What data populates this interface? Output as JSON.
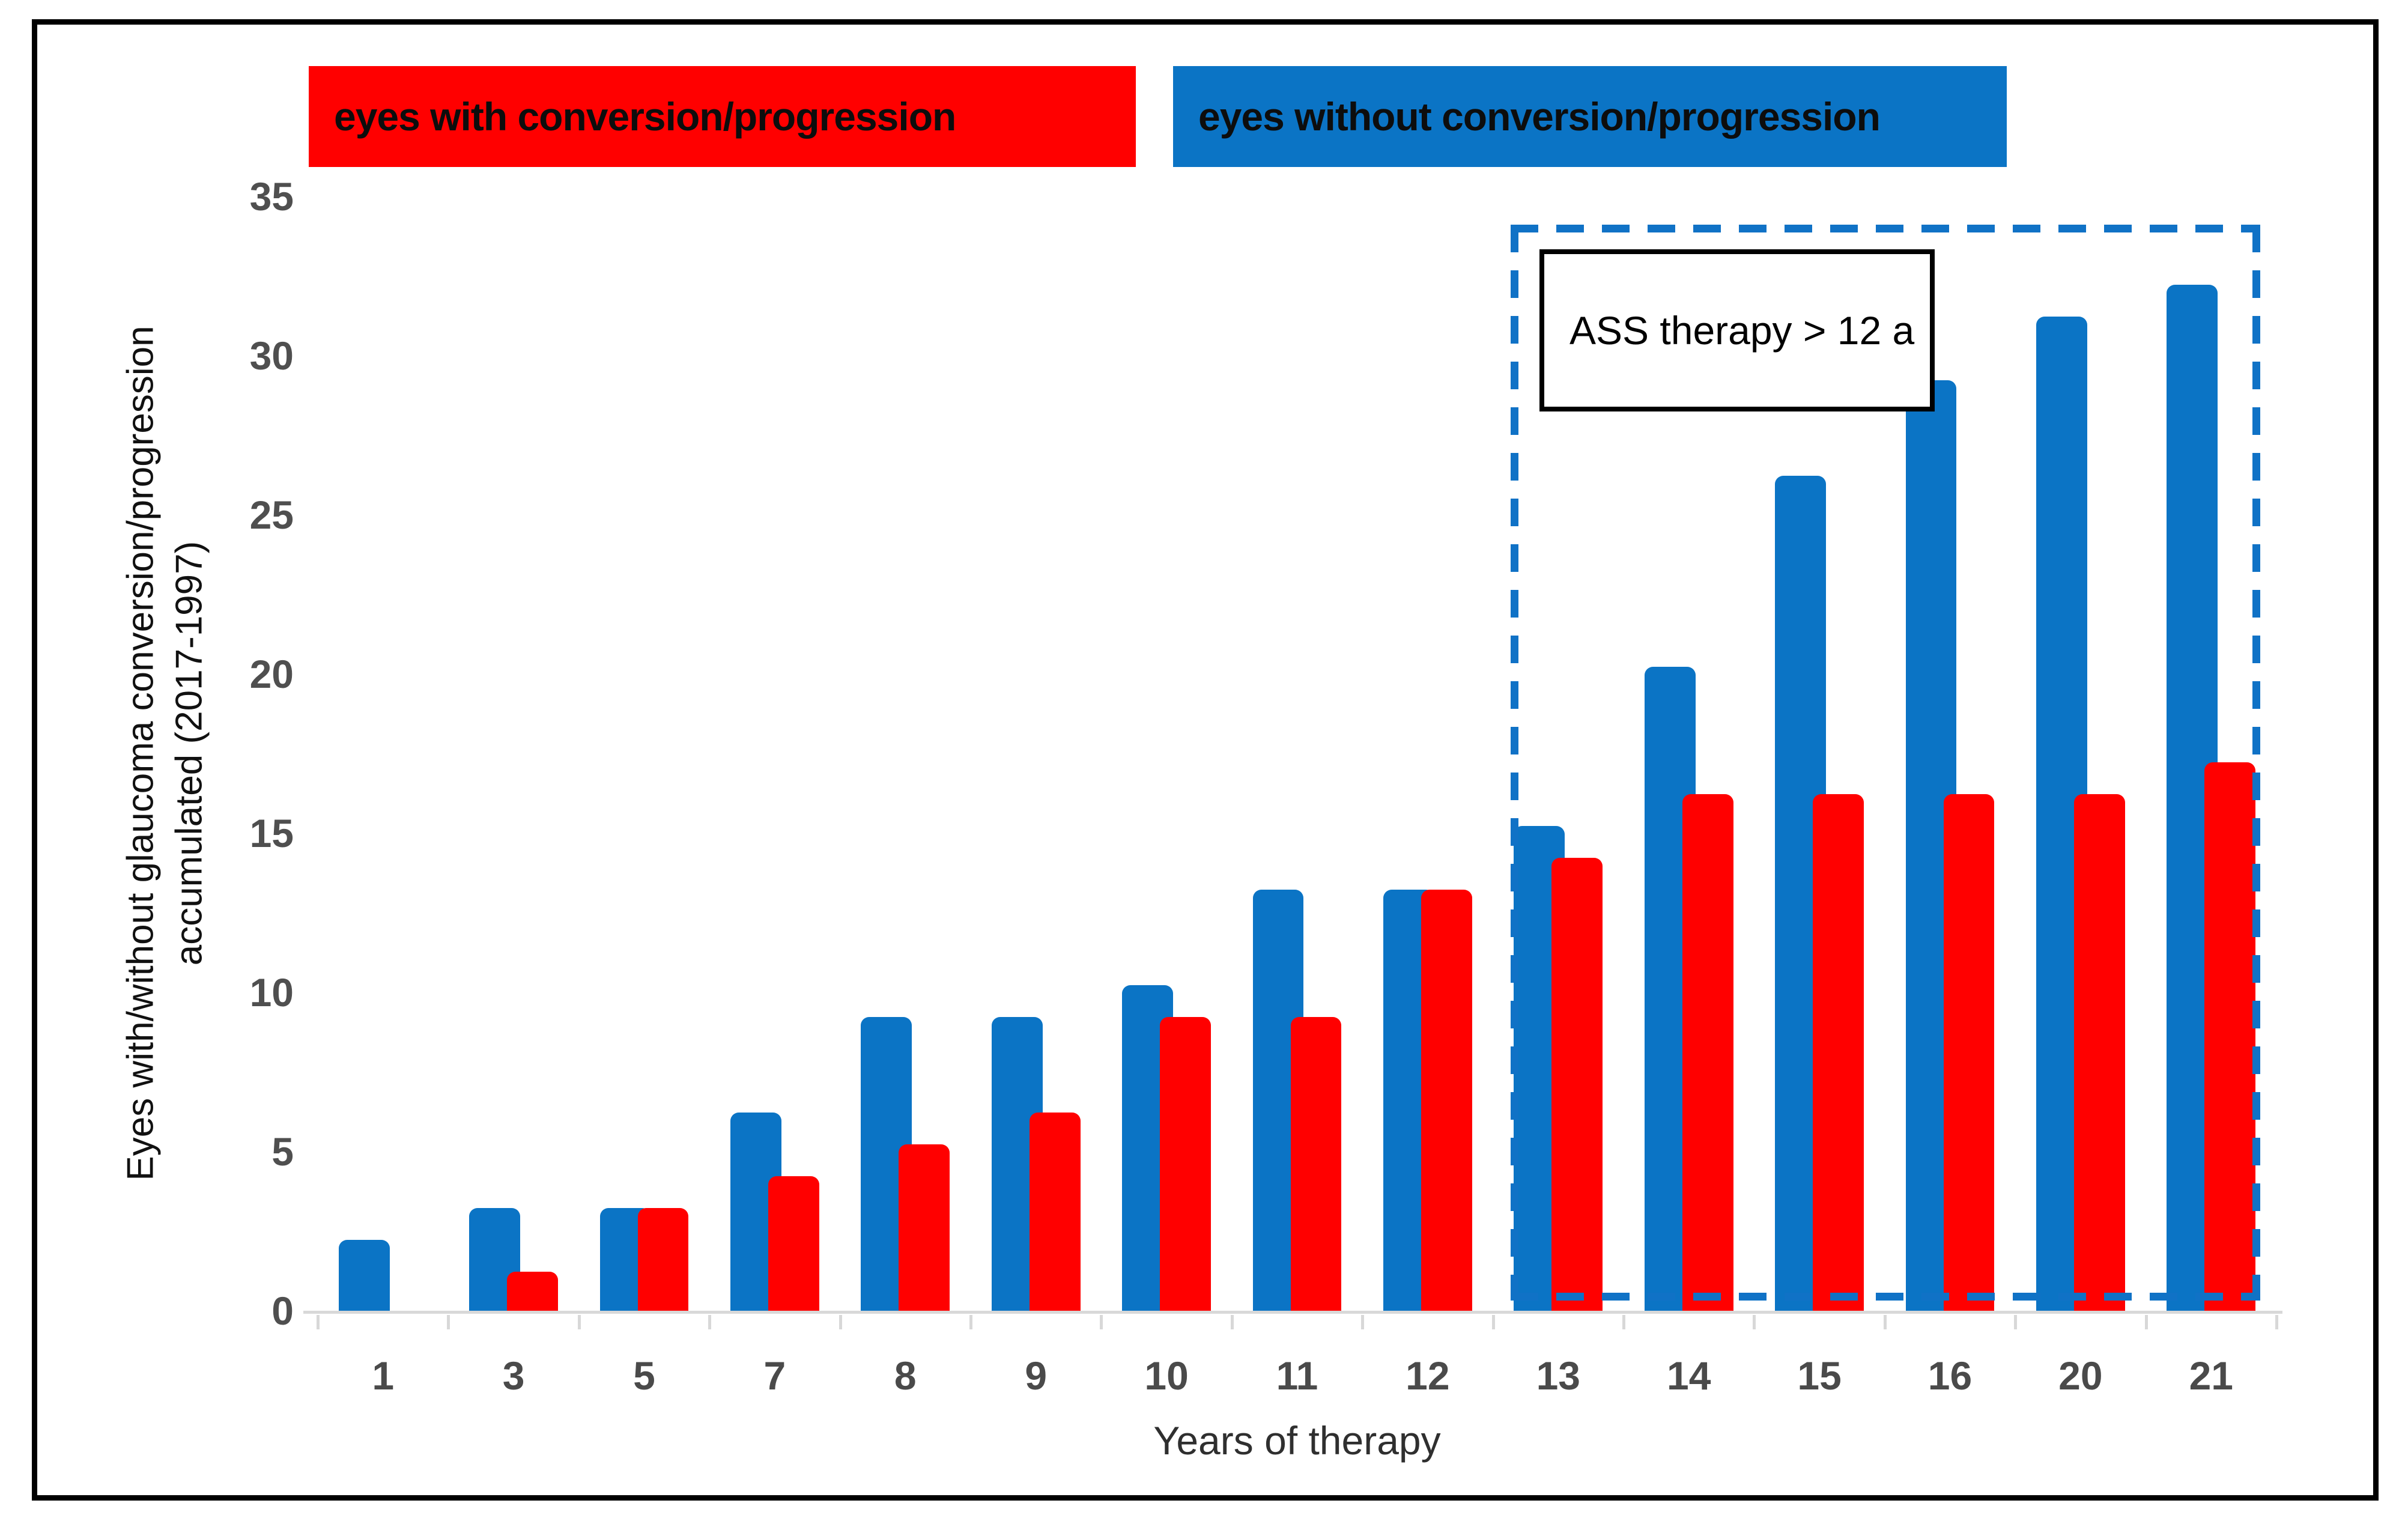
{
  "chart_data": {
    "type": "bar",
    "title": "",
    "categories": [
      "1",
      "3",
      "5",
      "7",
      "8",
      "9",
      "10",
      "11",
      "12",
      "13",
      "14",
      "15",
      "16",
      "20",
      "21"
    ],
    "series": [
      {
        "name": "eyes without conversion/progression",
        "color_key": "blue",
        "values": [
          2,
          3,
          3,
          6,
          9,
          9,
          10,
          13,
          13,
          15,
          20,
          26,
          29,
          31,
          32
        ]
      },
      {
        "name": "eyes with conversion/progression",
        "color_key": "red",
        "values": [
          0,
          1,
          3,
          4,
          5,
          6,
          9,
          9,
          13,
          14,
          16,
          16,
          16,
          16,
          17
        ]
      }
    ],
    "xlabel": "Years of therapy",
    "ylabel_line1": "Eyes with/without glaucoma conversion/progression",
    "ylabel_line2": "accumulated (2017-1997)",
    "y_ticks": [
      35,
      30,
      25,
      20,
      15,
      10,
      5,
      0
    ],
    "ylim": [
      0,
      35
    ],
    "grid": "off",
    "legend_position": "top",
    "annotation": {
      "label": "ASS therapy > 12 a",
      "region_categories": [
        "13",
        "14",
        "15",
        "16",
        "20",
        "21"
      ]
    }
  },
  "legend": {
    "with_normal": "eyes with conversion/",
    "with_bold": "progression",
    "without": "eyes without conversion/progression"
  },
  "annotation_label": "ASS therapy > 12 a",
  "colors": {
    "bar_blue": "#0B74C5",
    "bar_red": "#FF0000",
    "legend_red_bg": "#FF0000",
    "legend_blue_bg": "#0B74C5",
    "dashed_box_blue": "#1072C6",
    "axis_gray": "#D8D8D8",
    "frame_black": "#000000"
  }
}
